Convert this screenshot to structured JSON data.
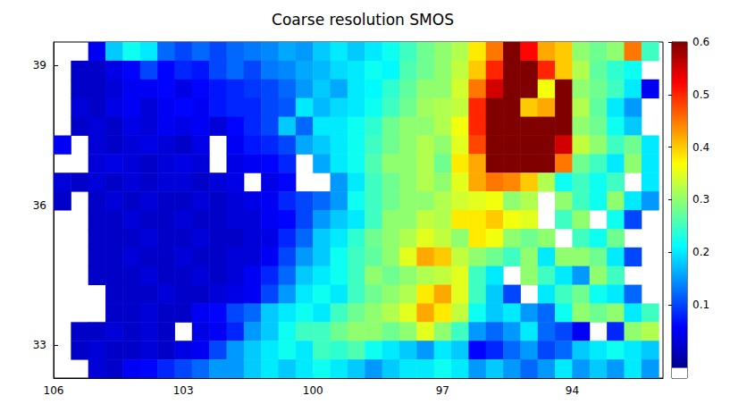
{
  "chart_data": {
    "type": "heatmap",
    "title": "Coarse resolution SMOS",
    "x": [
      105.8,
      105.4,
      105.0,
      104.6,
      104.2,
      103.8,
      103.4,
      103.0,
      102.6,
      102.2,
      101.8,
      101.4,
      101.0,
      100.6,
      100.2,
      99.8,
      99.4,
      99.0,
      98.6,
      98.2,
      97.8,
      97.4,
      97.0,
      96.6,
      96.2,
      95.8,
      95.4,
      95.0,
      94.6,
      94.2,
      93.8,
      93.4,
      93.0,
      92.6,
      92.2
    ],
    "y": [
      39.3,
      38.9,
      38.5,
      38.1,
      37.7,
      37.3,
      36.9,
      36.5,
      36.1,
      35.7,
      35.3,
      34.9,
      34.5,
      34.1,
      33.7,
      33.3,
      32.9,
      32.5
    ],
    "values": [
      [
        null,
        null,
        0.05,
        0.18,
        0.22,
        0.2,
        0.12,
        0.1,
        0.12,
        0.1,
        0.12,
        0.13,
        0.14,
        0.16,
        0.15,
        0.18,
        0.2,
        0.18,
        0.2,
        0.22,
        0.25,
        0.28,
        0.3,
        0.32,
        0.38,
        0.45,
        0.6,
        0.52,
        0.42,
        0.4,
        0.3,
        0.28,
        0.3,
        0.45,
        0.25
      ],
      [
        null,
        0.02,
        0.02,
        0.04,
        0.06,
        0.1,
        0.06,
        0.08,
        0.07,
        0.1,
        0.12,
        0.1,
        0.13,
        0.14,
        0.16,
        0.17,
        0.19,
        0.2,
        0.22,
        0.21,
        0.26,
        0.28,
        0.3,
        0.33,
        0.4,
        0.5,
        0.6,
        0.6,
        0.5,
        0.4,
        0.32,
        0.27,
        0.24,
        0.22,
        null
      ],
      [
        null,
        0.02,
        0.02,
        0.03,
        0.05,
        0.05,
        0.06,
        0.04,
        0.06,
        0.07,
        0.08,
        0.09,
        0.1,
        0.12,
        0.15,
        0.18,
        0.16,
        0.2,
        0.21,
        0.24,
        0.27,
        0.3,
        0.3,
        0.34,
        0.45,
        0.55,
        0.6,
        0.6,
        0.36,
        0.6,
        0.3,
        0.28,
        0.25,
        0.2,
        0.05
      ],
      [
        null,
        0.03,
        0.02,
        0.04,
        0.05,
        0.03,
        0.05,
        0.06,
        0.05,
        0.07,
        0.08,
        0.08,
        0.1,
        0.11,
        0.2,
        0.17,
        0.19,
        0.2,
        0.22,
        0.25,
        0.28,
        0.31,
        0.32,
        0.33,
        0.5,
        0.6,
        0.6,
        0.4,
        0.42,
        0.6,
        0.32,
        0.27,
        0.2,
        0.15,
        null
      ],
      [
        null,
        0.02,
        0.03,
        0.02,
        0.04,
        0.03,
        0.05,
        0.04,
        0.05,
        0.03,
        0.06,
        0.08,
        0.1,
        0.18,
        0.12,
        0.2,
        0.2,
        0.22,
        0.24,
        0.28,
        0.3,
        0.3,
        0.32,
        0.36,
        0.5,
        0.6,
        0.6,
        0.6,
        0.6,
        0.6,
        0.3,
        0.28,
        0.22,
        0.18,
        null
      ],
      [
        0.05,
        null,
        0.03,
        0.02,
        0.03,
        0.04,
        0.03,
        0.02,
        0.04,
        null,
        0.05,
        0.07,
        0.08,
        0.1,
        0.16,
        0.18,
        0.2,
        0.22,
        0.25,
        0.28,
        0.3,
        0.32,
        0.3,
        0.35,
        0.48,
        0.6,
        0.6,
        0.6,
        0.6,
        0.55,
        0.33,
        0.3,
        0.25,
        0.28,
        0.2
      ],
      [
        null,
        null,
        0.03,
        0.04,
        0.03,
        0.02,
        0.03,
        0.04,
        0.03,
        null,
        0.04,
        0.05,
        0.06,
        0.08,
        null,
        0.16,
        0.2,
        0.22,
        0.26,
        0.3,
        0.3,
        0.32,
        0.28,
        0.38,
        0.42,
        0.6,
        0.6,
        0.6,
        0.6,
        0.45,
        0.28,
        0.25,
        0.2,
        0.3,
        0.2
      ],
      [
        0.03,
        0.02,
        0.03,
        0.02,
        0.03,
        0.02,
        0.03,
        0.03,
        0.02,
        0.03,
        0.04,
        null,
        0.04,
        0.06,
        null,
        null,
        0.15,
        0.2,
        0.25,
        0.28,
        0.3,
        0.32,
        0.3,
        0.35,
        0.42,
        0.45,
        0.44,
        0.4,
        0.32,
        0.22,
        0.25,
        0.22,
        0.25,
        null,
        0.2
      ],
      [
        0.02,
        null,
        0.02,
        0.03,
        0.02,
        0.03,
        0.02,
        0.02,
        0.03,
        0.02,
        0.03,
        0.04,
        0.05,
        0.08,
        0.1,
        0.12,
        0.15,
        0.22,
        0.25,
        0.28,
        0.3,
        0.3,
        0.32,
        0.34,
        0.35,
        0.36,
        0.3,
        0.32,
        null,
        0.3,
        0.25,
        0.22,
        0.3,
        0.2,
        0.15
      ],
      [
        null,
        null,
        0.02,
        0.02,
        0.03,
        0.02,
        0.02,
        0.03,
        0.02,
        0.02,
        0.03,
        0.03,
        0.05,
        0.06,
        0.1,
        0.15,
        0.18,
        0.2,
        0.25,
        0.3,
        0.3,
        0.33,
        0.32,
        0.38,
        0.38,
        0.4,
        0.36,
        0.35,
        null,
        0.25,
        0.3,
        null,
        0.22,
        0.1,
        null
      ],
      [
        null,
        null,
        0.02,
        0.02,
        0.02,
        0.03,
        0.02,
        0.02,
        0.03,
        0.02,
        0.02,
        0.03,
        0.04,
        0.08,
        0.12,
        0.18,
        0.2,
        0.24,
        0.28,
        0.3,
        0.32,
        0.35,
        0.33,
        0.3,
        0.38,
        0.36,
        0.3,
        0.28,
        0.3,
        null,
        0.25,
        0.22,
        0.28,
        null,
        null
      ],
      [
        null,
        null,
        0.02,
        0.02,
        0.03,
        0.02,
        0.02,
        0.03,
        0.02,
        0.02,
        0.03,
        0.03,
        0.05,
        0.1,
        0.15,
        0.18,
        0.22,
        0.25,
        0.27,
        0.3,
        0.35,
        0.42,
        0.4,
        0.33,
        0.3,
        0.28,
        0.25,
        0.3,
        0.2,
        0.3,
        0.3,
        0.28,
        0.2,
        0.1,
        null
      ],
      [
        null,
        null,
        0.02,
        0.02,
        0.02,
        0.03,
        0.02,
        0.02,
        0.03,
        0.02,
        0.03,
        0.05,
        0.08,
        0.12,
        0.18,
        0.2,
        0.22,
        0.25,
        0.3,
        0.28,
        0.3,
        0.32,
        0.33,
        0.35,
        0.25,
        0.2,
        null,
        0.3,
        0.25,
        0.2,
        0.15,
        0.3,
        0.25,
        null,
        null
      ],
      [
        null,
        null,
        null,
        0.02,
        0.02,
        0.02,
        0.03,
        0.02,
        0.02,
        0.03,
        0.04,
        0.05,
        0.1,
        0.15,
        0.2,
        0.22,
        0.2,
        0.25,
        0.28,
        0.3,
        0.32,
        0.38,
        0.42,
        0.35,
        0.25,
        0.18,
        0.1,
        null,
        0.2,
        0.25,
        0.28,
        0.22,
        0.2,
        0.12,
        null
      ],
      [
        null,
        null,
        null,
        0.02,
        0.02,
        0.03,
        0.02,
        0.02,
        0.05,
        0.06,
        0.1,
        0.12,
        0.18,
        0.2,
        0.22,
        0.2,
        0.25,
        0.28,
        0.3,
        0.32,
        0.35,
        0.42,
        0.38,
        0.33,
        0.22,
        0.18,
        0.2,
        0.15,
        0.12,
        0.22,
        0.3,
        0.28,
        0.3,
        0.2,
        0.25
      ],
      [
        null,
        0.02,
        0.02,
        0.03,
        0.02,
        0.03,
        0.02,
        null,
        0.04,
        0.05,
        0.08,
        0.15,
        0.18,
        0.22,
        0.25,
        0.25,
        0.28,
        0.3,
        0.3,
        0.28,
        0.3,
        0.35,
        0.3,
        0.25,
        0.15,
        0.12,
        0.15,
        0.2,
        0.12,
        0.1,
        0.05,
        null,
        0.08,
        0.3,
        0.32
      ],
      [
        null,
        0.02,
        0.03,
        0.02,
        0.02,
        0.03,
        0.02,
        0.04,
        0.05,
        0.1,
        0.15,
        0.18,
        0.2,
        0.22,
        0.2,
        0.25,
        0.24,
        0.26,
        0.22,
        0.2,
        0.18,
        0.15,
        0.2,
        0.18,
        0.06,
        0.08,
        0.12,
        0.15,
        0.1,
        0.12,
        0.18,
        0.2,
        0.22,
        0.2,
        0.18
      ],
      [
        null,
        null,
        0.03,
        0.02,
        0.05,
        0.06,
        0.08,
        0.1,
        0.12,
        0.15,
        0.15,
        0.18,
        0.2,
        0.18,
        0.2,
        0.22,
        0.2,
        0.18,
        0.15,
        0.18,
        0.2,
        0.2,
        0.22,
        0.2,
        0.15,
        0.18,
        0.15,
        0.12,
        0.15,
        0.2,
        0.15,
        0.18,
        0.15,
        0.2,
        0.15
      ]
    ],
    "xlim": [
      106,
      91.9
    ],
    "xticks": [
      106,
      103,
      100,
      97,
      94
    ],
    "ylim": [
      32.3,
      39.5
    ],
    "yticks": [
      33,
      36,
      39
    ],
    "colorbar": {
      "range": [
        -0.04,
        0.6
      ],
      "ticks": [
        0.1,
        0.2,
        0.3,
        0.4,
        0.5,
        0.6
      ]
    }
  }
}
